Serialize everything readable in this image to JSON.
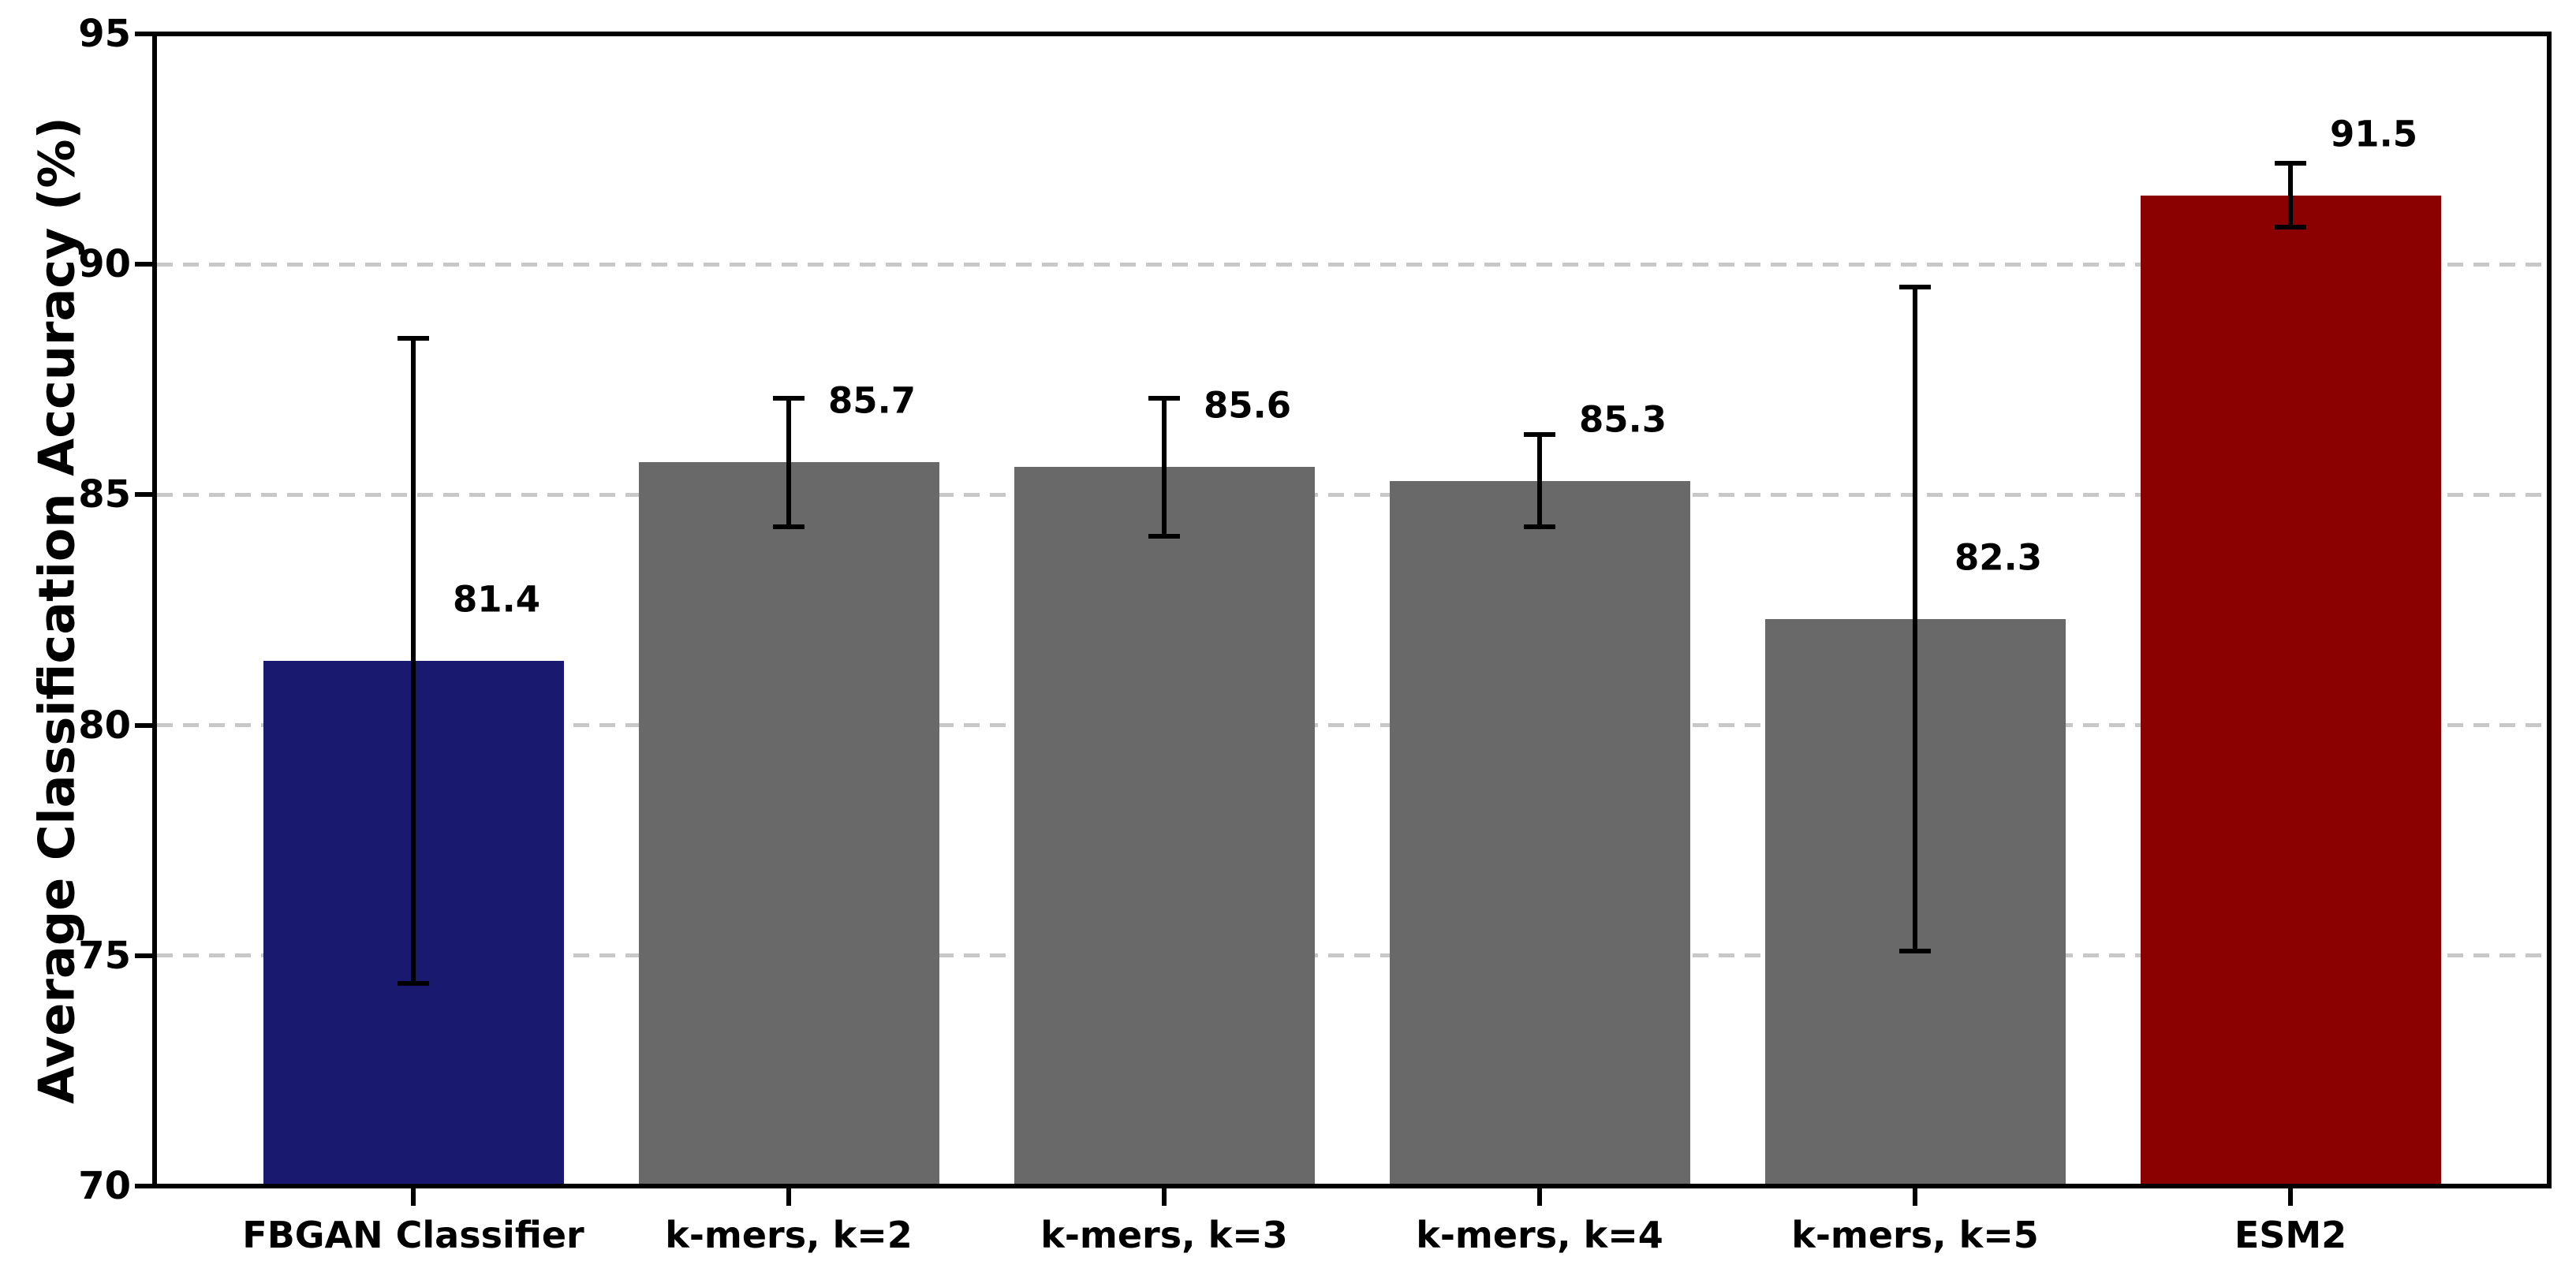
{
  "chart_data": {
    "type": "bar",
    "title": "",
    "xlabel": "",
    "ylabel": "Average Classification Accuracy (%)",
    "ylim": [
      70,
      95
    ],
    "yticks": [
      70,
      75,
      80,
      85,
      90,
      95
    ],
    "gridline_values": [
      75,
      80,
      85,
      90
    ],
    "grid_on": true,
    "legend": "none",
    "categories": [
      "FBGAN Classifier",
      "k-mers, k=2",
      "k-mers, k=3",
      "k-mers, k=4",
      "k-mers, k=5",
      "ESM2"
    ],
    "series": [
      {
        "name": "Average Classification Accuracy",
        "values": [
          81.4,
          85.7,
          85.6,
          85.3,
          82.3,
          91.5
        ],
        "errors": [
          7.0,
          1.4,
          1.5,
          1.0,
          7.2,
          0.7
        ],
        "value_labels": [
          "81.4",
          "85.7",
          "85.6",
          "85.3",
          "82.3",
          "91.5"
        ]
      }
    ],
    "colors": {
      "bar_fill": [
        "#191970",
        "#696969",
        "#696969",
        "#696969",
        "#696969",
        "#8B0000"
      ],
      "error_bar": "#000000",
      "gridline": "#c8c8c8",
      "axis": "#000000",
      "text": "#000000",
      "background": "#ffffff"
    }
  }
}
